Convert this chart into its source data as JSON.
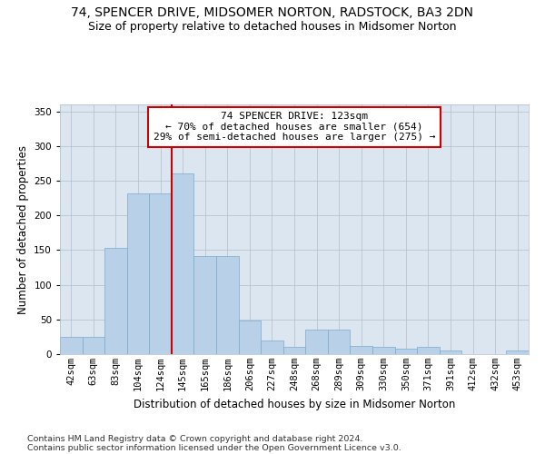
{
  "title": "74, SPENCER DRIVE, MIDSOMER NORTON, RADSTOCK, BA3 2DN",
  "subtitle": "Size of property relative to detached houses in Midsomer Norton",
  "xlabel": "Distribution of detached houses by size in Midsomer Norton",
  "ylabel": "Number of detached properties",
  "footnote1": "Contains HM Land Registry data © Crown copyright and database right 2024.",
  "footnote2": "Contains public sector information licensed under the Open Government Licence v3.0.",
  "annotation_title": "74 SPENCER DRIVE: 123sqm",
  "annotation_line1": "← 70% of detached houses are smaller (654)",
  "annotation_line2": "29% of semi-detached houses are larger (275) →",
  "bar_labels": [
    "42sqm",
    "63sqm",
    "83sqm",
    "104sqm",
    "124sqm",
    "145sqm",
    "165sqm",
    "186sqm",
    "206sqm",
    "227sqm",
    "248sqm",
    "268sqm",
    "289sqm",
    "309sqm",
    "330sqm",
    "350sqm",
    "371sqm",
    "391sqm",
    "412sqm",
    "432sqm",
    "453sqm"
  ],
  "bar_values": [
    25,
    25,
    153,
    232,
    232,
    260,
    142,
    142,
    48,
    20,
    10,
    35,
    35,
    12,
    10,
    8,
    10,
    5,
    0,
    0,
    5
  ],
  "bar_color": "#b8d0e8",
  "bar_edge_color": "#7aaace",
  "vline_color": "#cc0000",
  "vline_x": 4.5,
  "ylim": [
    0,
    360
  ],
  "yticks": [
    0,
    50,
    100,
    150,
    200,
    250,
    300,
    350
  ],
  "background_color": "#ffffff",
  "plot_bg_color": "#dce6f0",
  "grid_color": "#b0bec8",
  "annotation_box_color": "#ffffff",
  "annotation_box_edge": "#cc0000",
  "title_fontsize": 10,
  "subtitle_fontsize": 9,
  "axis_label_fontsize": 8.5,
  "tick_fontsize": 7.5,
  "annotation_fontsize": 8,
  "footnote_fontsize": 6.8
}
